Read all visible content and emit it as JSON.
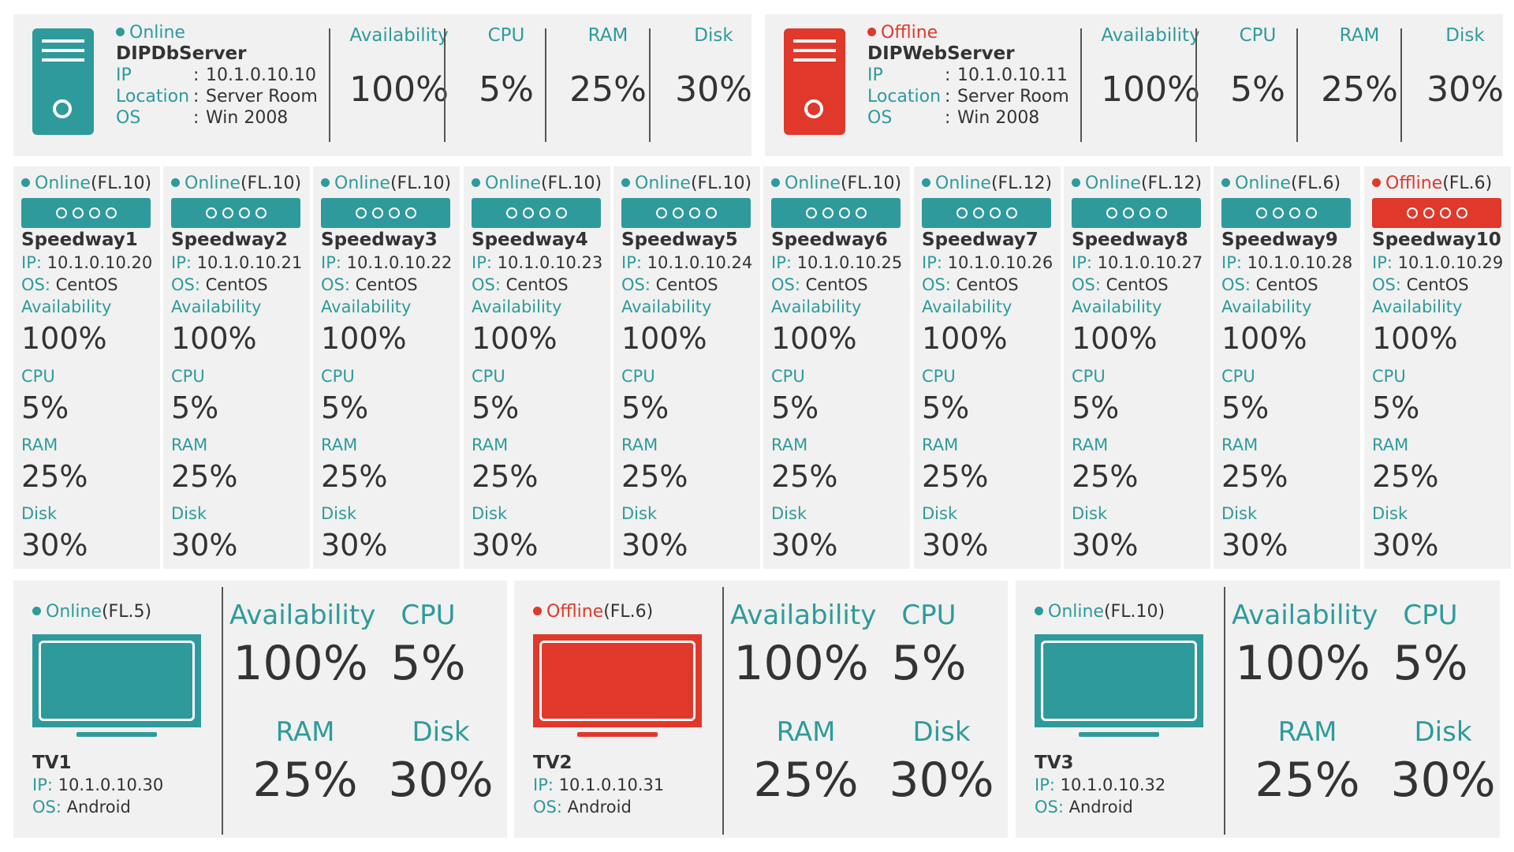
{
  "servers": [
    {
      "status": "Online",
      "status_color": "#2f9a9b",
      "name": "DIPDbServer",
      "ip_label": "IP",
      "ip": "10.1.0.10.10",
      "location_label": "Location",
      "location": "Server Room",
      "os_label": "OS",
      "os": "Win 2008",
      "availability_label": "Availability",
      "availability": "100%",
      "cpu_label": "CPU",
      "cpu": "5%",
      "ram_label": "RAM",
      "ram": "25%",
      "disk_label": "Disk",
      "disk": "30%",
      "colon": ":"
    },
    {
      "status": "Offline",
      "status_color": "#e0382b",
      "name": "DIPWebServer",
      "ip_label": "IP",
      "ip": "10.1.0.10.11",
      "location_label": "Location",
      "location": "Server Room",
      "os_label": "OS",
      "os": "Win 2008",
      "availability_label": "Availability",
      "availability": "100%",
      "cpu_label": "CPU",
      "cpu": "5%",
      "ram_label": "RAM",
      "ram": "25%",
      "disk_label": "Disk",
      "disk": "30%",
      "colon": ":"
    }
  ],
  "speedways": [
    {
      "status": "Online",
      "floor": "(FL.10)",
      "name": "Speedway1",
      "ip_label": "IP:",
      "ip": "10.1.0.10.20",
      "os_label": "OS:",
      "os": "CentOS",
      "availability_label": "Availability",
      "availability": "100%",
      "cpu_label": "CPU",
      "cpu": "5%",
      "ram_label": "RAM",
      "ram": "25%",
      "disk_label": "Disk",
      "disk": "30%"
    },
    {
      "status": "Online",
      "floor": "(FL.10)",
      "name": "Speedway2",
      "ip_label": "IP:",
      "ip": "10.1.0.10.21",
      "os_label": "OS:",
      "os": "CentOS",
      "availability_label": "Availability",
      "availability": "100%",
      "cpu_label": "CPU",
      "cpu": "5%",
      "ram_label": "RAM",
      "ram": "25%",
      "disk_label": "Disk",
      "disk": "30%"
    },
    {
      "status": "Online",
      "floor": "(FL.10)",
      "name": "Speedway3",
      "ip_label": "IP:",
      "ip": "10.1.0.10.22",
      "os_label": "OS:",
      "os": "CentOS",
      "availability_label": "Availability",
      "availability": "100%",
      "cpu_label": "CPU",
      "cpu": "5%",
      "ram_label": "RAM",
      "ram": "25%",
      "disk_label": "Disk",
      "disk": "30%"
    },
    {
      "status": "Online",
      "floor": "(FL.10)",
      "name": "Speedway4",
      "ip_label": "IP:",
      "ip": "10.1.0.10.23",
      "os_label": "OS:",
      "os": "CentOS",
      "availability_label": "Availability",
      "availability": "100%",
      "cpu_label": "CPU",
      "cpu": "5%",
      "ram_label": "RAM",
      "ram": "25%",
      "disk_label": "Disk",
      "disk": "30%"
    },
    {
      "status": "Online",
      "floor": "(FL.10)",
      "name": "Speedway5",
      "ip_label": "IP:",
      "ip": "10.1.0.10.24",
      "os_label": "OS:",
      "os": "CentOS",
      "availability_label": "Availability",
      "availability": "100%",
      "cpu_label": "CPU",
      "cpu": "5%",
      "ram_label": "RAM",
      "ram": "25%",
      "disk_label": "Disk",
      "disk": "30%"
    },
    {
      "status": "Online",
      "floor": "(FL.10)",
      "name": "Speedway6",
      "ip_label": "IP:",
      "ip": "10.1.0.10.25",
      "os_label": "OS:",
      "os": "CentOS",
      "availability_label": "Availability",
      "availability": "100%",
      "cpu_label": "CPU",
      "cpu": "5%",
      "ram_label": "RAM",
      "ram": "25%",
      "disk_label": "Disk",
      "disk": "30%"
    },
    {
      "status": "Online",
      "floor": "(FL.12)",
      "name": "Speedway7",
      "ip_label": "IP:",
      "ip": "10.1.0.10.26",
      "os_label": "OS:",
      "os": "CentOS",
      "availability_label": "Availability",
      "availability": "100%",
      "cpu_label": "CPU",
      "cpu": "5%",
      "ram_label": "RAM",
      "ram": "25%",
      "disk_label": "Disk",
      "disk": "30%"
    },
    {
      "status": "Online",
      "floor": "(FL.12)",
      "name": "Speedway8",
      "ip_label": "IP:",
      "ip": "10.1.0.10.27",
      "os_label": "OS:",
      "os": "CentOS",
      "availability_label": "Availability",
      "availability": "100%",
      "cpu_label": "CPU",
      "cpu": "5%",
      "ram_label": "RAM",
      "ram": "25%",
      "disk_label": "Disk",
      "disk": "30%"
    },
    {
      "status": "Online",
      "floor": "(FL.6)",
      "name": "Speedway9",
      "ip_label": "IP:",
      "ip": "10.1.0.10.28",
      "os_label": "OS:",
      "os": "CentOS",
      "availability_label": "Availability",
      "availability": "100%",
      "cpu_label": "CPU",
      "cpu": "5%",
      "ram_label": "RAM",
      "ram": "25%",
      "disk_label": "Disk",
      "disk": "30%"
    },
    {
      "status": "Offline",
      "floor": "(FL.6)",
      "name": "Speedway10",
      "ip_label": "IP:",
      "ip": "10.1.0.10.29",
      "os_label": "OS:",
      "os": "CentOS",
      "availability_label": "Availability",
      "availability": "100%",
      "cpu_label": "CPU",
      "cpu": "5%",
      "ram_label": "RAM",
      "ram": "25%",
      "disk_label": "Disk",
      "disk": "30%"
    }
  ],
  "tvs": [
    {
      "status": "Online",
      "floor": "(FL.5)",
      "name": "TV1",
      "ip_label": "IP:",
      "ip": "10.1.0.10.30",
      "os_label": "OS:",
      "os": "Android",
      "availability_label": "Availability",
      "availability": "100%",
      "cpu_label": "CPU",
      "cpu": "5%",
      "ram_label": "RAM",
      "ram": "25%",
      "disk_label": "Disk",
      "disk": "30%"
    },
    {
      "status": "Offline",
      "floor": "(FL.6)",
      "name": "TV2",
      "ip_label": "IP:",
      "ip": "10.1.0.10.31",
      "os_label": "OS:",
      "os": "Android",
      "availability_label": "Availability",
      "availability": "100%",
      "cpu_label": "CPU",
      "cpu": "5%",
      "ram_label": "RAM",
      "ram": "25%",
      "disk_label": "Disk",
      "disk": "30%"
    },
    {
      "status": "Online",
      "floor": "(FL.10)",
      "name": "TV3",
      "ip_label": "IP:",
      "ip": "10.1.0.10.32",
      "os_label": "OS:",
      "os": "Android",
      "availability_label": "Availability",
      "availability": "100%",
      "cpu_label": "CPU",
      "cpu": "5%",
      "ram_label": "RAM",
      "ram": "25%",
      "disk_label": "Disk",
      "disk": "30%"
    }
  ],
  "colors": {
    "online": "#2f9a9b",
    "offline": "#e0382b",
    "text": "#333333",
    "card": "#f1f1f1"
  },
  "icons": {
    "server": "server-icon",
    "speedway": "speedway-device-icon",
    "tv": "tv-monitor-icon",
    "status": "status-dot-icon"
  }
}
